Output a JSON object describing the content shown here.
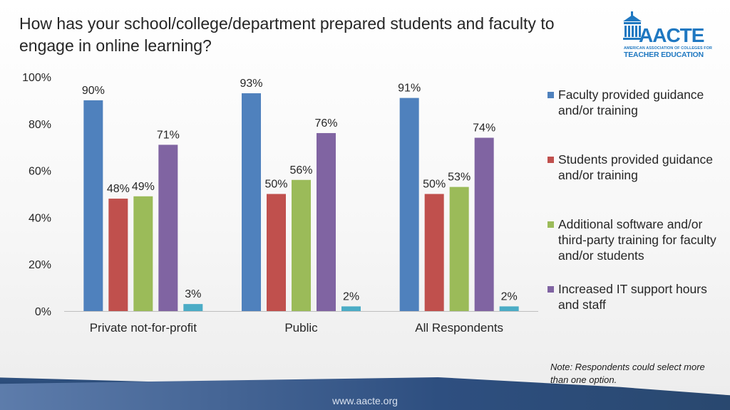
{
  "title": "How has your school/college/department prepared students and faculty to engage in online learning?",
  "logo": {
    "name": "AACTE",
    "subtitle_line1": "AMERICAN ASSOCIATION OF COLLEGES FOR",
    "subtitle_line2": "TEACHER EDUCATION"
  },
  "note": "Note:  Respondents could select more than one option.",
  "footer_url": "www.aacte.org",
  "chart_data": {
    "type": "bar",
    "title": "",
    "xlabel": "",
    "ylabel": "",
    "ylim": [
      0,
      100
    ],
    "yticks": [
      "0%",
      "20%",
      "40%",
      "60%",
      "80%",
      "100%"
    ],
    "grid": false,
    "legend_position": "right",
    "categories": [
      "Private not-for-profit",
      "Public",
      "All Respondents"
    ],
    "series": [
      {
        "name": "Faculty provided guidance and/or training",
        "color": "#4f81bd",
        "values": [
          90,
          93,
          91
        ],
        "labels": [
          "90%",
          "93%",
          "91%"
        ]
      },
      {
        "name": "Students provided guidance and/or training",
        "color": "#c0504d",
        "values": [
          48,
          50,
          50
        ],
        "labels": [
          "48%",
          "50%",
          "50%"
        ]
      },
      {
        "name": "Additional software and/or third-party training for faculty and/or students",
        "color": "#9bbb59",
        "values": [
          49,
          56,
          53
        ],
        "labels": [
          "49%",
          "56%",
          "53%"
        ]
      },
      {
        "name": "Increased IT support hours and staff",
        "color": "#8064a2",
        "values": [
          71,
          76,
          74
        ],
        "labels": [
          "71%",
          "76%",
          "74%"
        ]
      },
      {
        "name": "",
        "color": "#4bacc6",
        "values": [
          3,
          2,
          2
        ],
        "labels": [
          "3%",
          "2%",
          "2%"
        ]
      }
    ]
  }
}
